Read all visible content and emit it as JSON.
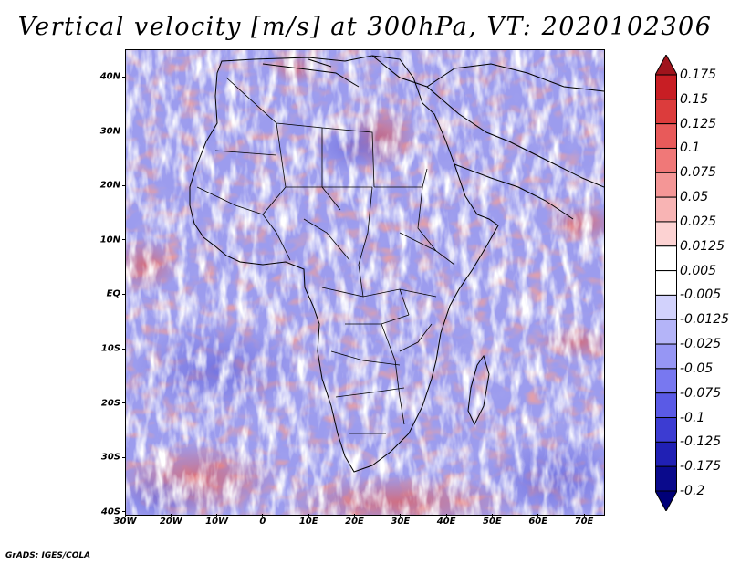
{
  "title": "Vertical velocity [m/s] at 300hPa, VT: 2020102306",
  "map": {
    "region": "Africa",
    "latitude_labels": [
      "40N",
      "30N",
      "20N",
      "10N",
      "EQ",
      "10S",
      "20S",
      "30S",
      "40S"
    ],
    "longitude_labels": [
      "30W",
      "20W",
      "10W",
      "0",
      "10E",
      "20E",
      "30E",
      "40E",
      "50E",
      "60E",
      "70E"
    ]
  },
  "colorbar": {
    "levels": [
      "0.175",
      "0.15",
      "0.125",
      "0.1",
      "0.075",
      "0.05",
      "0.025",
      "0.0125",
      "0.005",
      "-0.005",
      "-0.0125",
      "-0.025",
      "-0.05",
      "-0.075",
      "-0.1",
      "-0.125",
      "-0.175",
      "-0.2"
    ],
    "colors": [
      "#a0141c",
      "#c81e24",
      "#dc3c3c",
      "#e85a5a",
      "#f07878",
      "#f49696",
      "#f8b4b4",
      "#fcd2d2",
      "#ffffff",
      "#ffffff",
      "#d2d2fc",
      "#b4b4f8",
      "#9696f4",
      "#7878f0",
      "#5a5ae6",
      "#3c3cd2",
      "#2020b4",
      "#0a0a8c",
      "#000078"
    ]
  },
  "credit": "GrADS: IGES/COLA"
}
